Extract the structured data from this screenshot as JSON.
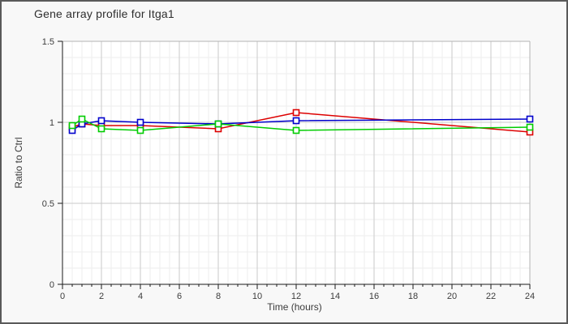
{
  "frame": {
    "background": "#f8f8f8",
    "border_color": "#5a5a5a"
  },
  "chart_data": {
    "type": "line",
    "title": "Gene array profile for Itga1",
    "xlabel": "Time (hours)",
    "ylabel": "Ratio to Ctrl",
    "x": [
      0.5,
      1,
      2,
      4,
      8,
      12,
      24
    ],
    "series": [
      {
        "name": "red",
        "color": "#dd0000",
        "values": [
          0.97,
          0.99,
          0.98,
          0.98,
          0.96,
          1.06,
          0.94
        ]
      },
      {
        "name": "blue",
        "color": "#0000cc",
        "values": [
          0.95,
          0.99,
          1.01,
          1.0,
          0.99,
          1.01,
          1.02
        ]
      },
      {
        "name": "green",
        "color": "#00cc00",
        "values": [
          0.98,
          1.02,
          0.96,
          0.95,
          0.99,
          0.95,
          0.97
        ]
      }
    ],
    "xlim": [
      0,
      24
    ],
    "ylim": [
      0,
      1.5
    ],
    "x_major_ticks": [
      0,
      2,
      4,
      6,
      8,
      10,
      12,
      14,
      16,
      18,
      20,
      22,
      24
    ],
    "x_tick_labels": [
      "0",
      "2",
      "4",
      "6",
      "8",
      "10",
      "12",
      "14",
      "16",
      "18",
      "20",
      "22",
      "24"
    ],
    "y_major_ticks": [
      0,
      0.5,
      1,
      1.5
    ],
    "y_tick_labels": [
      "0",
      "0.5",
      "1",
      "1.5"
    ],
    "x_minor_step": 0.5,
    "y_minor_step": 0.1,
    "grid": true,
    "legend": "none",
    "marker": "square",
    "marker_fill": "#ffffff"
  },
  "style": {
    "plot_bg": "#ffffff",
    "grid_minor": "#ededed",
    "grid_major": "#c9c9c9",
    "box_border": "#b3b3b3",
    "axis_color": "#1a1a1a",
    "tick_label_color": "#3c3c3c",
    "title_color": "#2e2e2e"
  }
}
